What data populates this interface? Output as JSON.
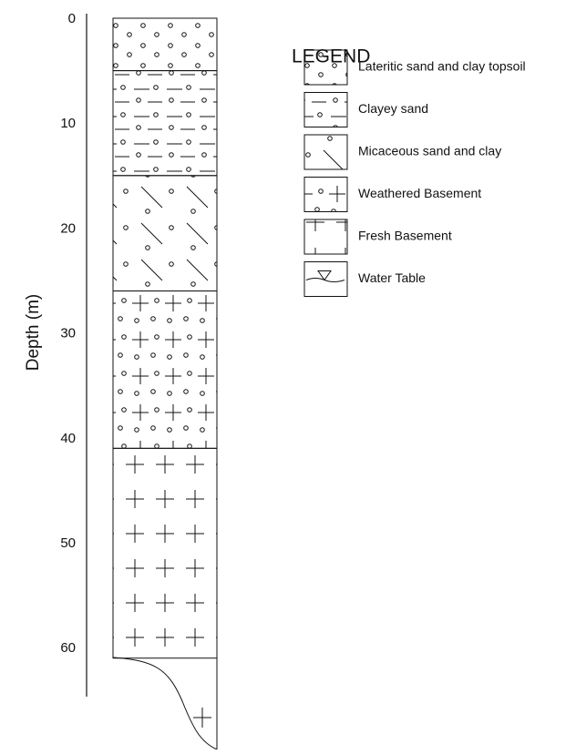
{
  "axis": {
    "label": "Depth (m)",
    "ylim": [
      0,
      65
    ],
    "yticks": [
      0,
      10,
      20,
      30,
      40,
      50,
      60
    ]
  },
  "legend": {
    "title": "LEGEND",
    "items": [
      {
        "label": "Lateritic sand and clay topsoil",
        "top": 0,
        "bottom": 5
      },
      {
        "label": "Clayey sand",
        "top": 5,
        "bottom": 15
      },
      {
        "label": "Micaceous sand and clay",
        "top": 15,
        "bottom": 26
      },
      {
        "label": "Weathered Basement",
        "top": 26,
        "bottom": 41
      },
      {
        "label": "Fresh Basement",
        "top": 41,
        "bottom": 61
      },
      {
        "label": "Water Table"
      }
    ]
  }
}
